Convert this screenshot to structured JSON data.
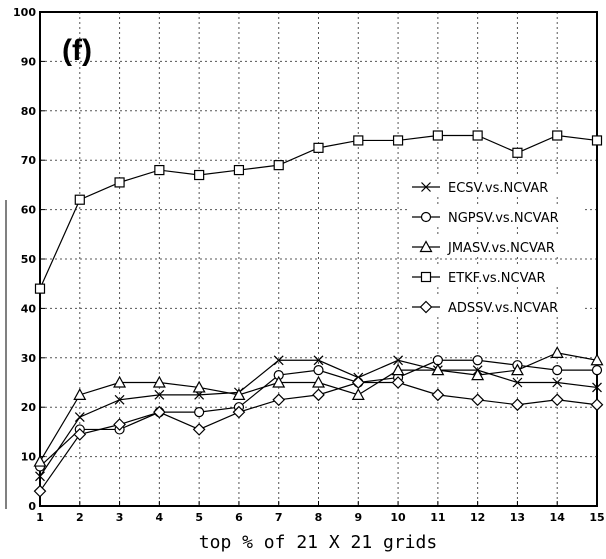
{
  "chart_data": {
    "type": "line",
    "panel_label": "(f)",
    "xlabel": "top % of 21 X 21 grids",
    "ylabel": "",
    "x": [
      1,
      2,
      3,
      4,
      5,
      6,
      7,
      8,
      9,
      10,
      11,
      12,
      13,
      14,
      15
    ],
    "xlim": [
      1,
      15
    ],
    "ylim": [
      0,
      100
    ],
    "x_ticks": [
      "1",
      "2",
      "3",
      "4",
      "5",
      "6",
      "7",
      "8",
      "9",
      "10",
      "11",
      "12",
      "13",
      "14",
      "15"
    ],
    "y_ticks": [
      "0",
      "10",
      "20",
      "30",
      "40",
      "50",
      "60",
      "70",
      "80",
      "90",
      "100"
    ],
    "grid": true,
    "legend_position": "right-middle",
    "series": [
      {
        "name": "ECSV.vs.NCVAR",
        "marker": "x",
        "values": [
          6,
          18,
          21.5,
          22.5,
          22.5,
          23,
          29.5,
          29.5,
          26,
          29.5,
          27.5,
          27.5,
          25,
          25,
          24
        ]
      },
      {
        "name": "NGPSV.vs.NCVAR",
        "marker": "circle",
        "values": [
          8,
          15.5,
          15.5,
          19,
          19,
          20,
          26.5,
          27.5,
          25,
          26,
          29.5,
          29.5,
          28.5,
          27.5,
          27.5
        ]
      },
      {
        "name": "JMASV.vs.NCVAR",
        "marker": "triangle",
        "values": [
          9,
          22.5,
          25,
          25,
          24,
          22.5,
          25,
          25,
          22.5,
          27.5,
          27.5,
          26.5,
          27.5,
          31,
          29.5
        ]
      },
      {
        "name": "ETKF.vs.NCVAR",
        "marker": "square",
        "values": [
          44,
          62,
          65.5,
          68,
          67,
          68,
          69,
          72.5,
          74,
          74,
          75,
          75,
          71.5,
          75,
          74
        ]
      },
      {
        "name": "ADSSV.vs.NCVAR",
        "marker": "diamond",
        "values": [
          3,
          14.5,
          16.5,
          19,
          15.5,
          19,
          21.5,
          22.5,
          25,
          25,
          22.5,
          21.5,
          20.5,
          21.5,
          20.5
        ]
      }
    ]
  }
}
